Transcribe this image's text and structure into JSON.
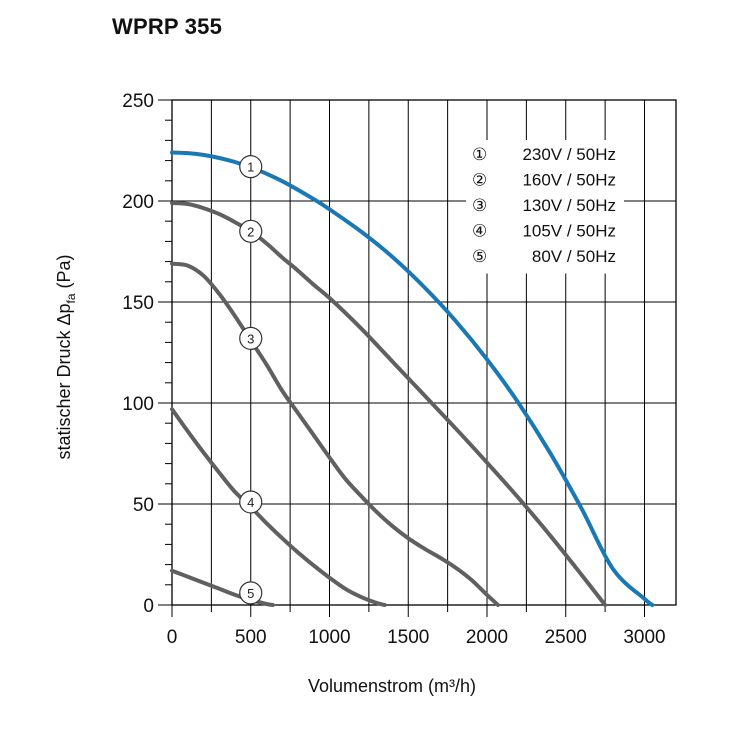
{
  "chart_data": {
    "type": "line",
    "title": "WPRP 355",
    "xlabel": "Volumenstrom (m³/h)",
    "ylabel": "statischer Druck Δp",
    "ylabel_sub": "fa",
    "ylabel_unit": " (Pa)",
    "xlim": [
      0,
      3200
    ],
    "ylim": [
      0,
      250
    ],
    "x_ticks": [
      0,
      500,
      1000,
      1500,
      2000,
      2500,
      3000
    ],
    "y_ticks": [
      0,
      50,
      100,
      150,
      200,
      250
    ],
    "grid": true,
    "legend_position": "top-right",
    "series": [
      {
        "id": 1,
        "name": "230V / 50Hz",
        "marker_symbol": "①",
        "color": "#1a78b4",
        "x": [
          0,
          100,
          200,
          300,
          400,
          500,
          600,
          700,
          800,
          900,
          1000,
          1200,
          1400,
          1600,
          1800,
          2000,
          2200,
          2400,
          2600,
          2800,
          3000,
          3050
        ],
        "y": [
          224,
          223.7,
          222.8,
          221.3,
          219.3,
          216.7,
          213.5,
          209.8,
          205.5,
          200.9,
          195.9,
          184.9,
          172.3,
          157.5,
          140.7,
          121.6,
          100,
          75.4,
          47.8,
          17.8,
          3,
          0
        ]
      },
      {
        "id": 2,
        "name": "160V / 50Hz",
        "marker_symbol": "②",
        "color": "#606060",
        "x": [
          0,
          100,
          200,
          300,
          400,
          500,
          600,
          700,
          800,
          900,
          1000,
          1200,
          1400,
          1600,
          1800,
          2000,
          2200,
          2400,
          2600,
          2750
        ],
        "y": [
          199,
          198.5,
          196.5,
          193.5,
          189.5,
          185,
          179,
          172,
          165.5,
          158.5,
          152,
          137,
          120.5,
          104,
          87.5,
          70.5,
          53,
          34.5,
          15,
          0
        ]
      },
      {
        "id": 3,
        "name": "130V / 50Hz",
        "marker_symbol": "③",
        "color": "#606060",
        "x": [
          0,
          100,
          200,
          300,
          400,
          500,
          600,
          700,
          800,
          900,
          1000,
          1100,
          1200,
          1300,
          1400,
          1500,
          1600,
          1700,
          1800,
          1900,
          2000,
          2070
        ],
        "y": [
          169,
          168,
          163,
          154,
          143,
          131,
          119,
          106,
          95,
          84,
          73,
          62.5,
          54,
          46,
          39,
          33,
          28,
          23.5,
          18.5,
          12.5,
          5,
          0
        ]
      },
      {
        "id": 4,
        "name": "105V / 50Hz",
        "marker_symbol": "④",
        "color": "#606060",
        "x": [
          0,
          100,
          200,
          300,
          400,
          500,
          600,
          700,
          800,
          900,
          1000,
          1100,
          1200,
          1300,
          1350
        ],
        "y": [
          97,
          86,
          75.5,
          65.5,
          56,
          48.5,
          40.5,
          33,
          26,
          19.5,
          13.5,
          8,
          4,
          1,
          0
        ]
      },
      {
        "id": 5,
        "name": "80V / 50Hz",
        "marker_symbol": "⑤",
        "color": "#606060",
        "x": [
          0,
          100,
          200,
          300,
          400,
          500,
          600,
          640
        ],
        "y": [
          17,
          14,
          11,
          8,
          5,
          2.5,
          0.5,
          0
        ]
      }
    ],
    "markers": [
      {
        "series": 1,
        "label": "1",
        "x": 500,
        "y": 217
      },
      {
        "series": 2,
        "label": "2",
        "x": 500,
        "y": 185
      },
      {
        "series": 3,
        "label": "3",
        "x": 500,
        "y": 132
      },
      {
        "series": 4,
        "label": "4",
        "x": 500,
        "y": 51
      },
      {
        "series": 5,
        "label": "5",
        "x": 500,
        "y": 6
      }
    ]
  }
}
